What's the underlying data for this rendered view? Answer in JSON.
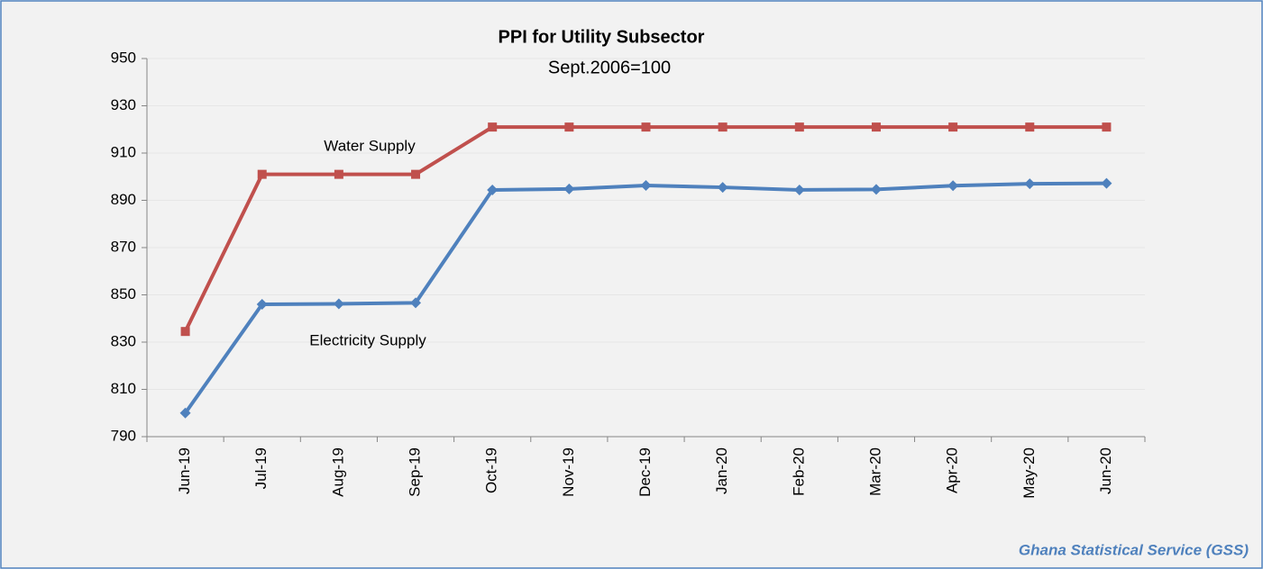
{
  "chart_data": {
    "type": "line",
    "title": "PPI  for Utility Subsector",
    "subtitle": "Sept.2006=100",
    "source": "Ghana Statistical Service (GSS)",
    "categories": [
      "Jun-19",
      "Jul-19",
      "Aug-19",
      "Sep-19",
      "Oct-19",
      "Nov-19",
      "Dec-19",
      "Jan-20",
      "Feb-20",
      "Mar-20",
      "Apr-20",
      "May-20",
      "Jun-20"
    ],
    "series": [
      {
        "name": "Water Supply",
        "color": "#c0504d",
        "marker": "square",
        "values": [
          834.5,
          901,
          901,
          901,
          921,
          921,
          921,
          921,
          921,
          921,
          921,
          921,
          921
        ]
      },
      {
        "name": "Electricity Supply",
        "color": "#4f81bd",
        "marker": "diamond",
        "values": [
          800,
          846,
          846.2,
          846.6,
          894.4,
          894.8,
          896.3,
          895.5,
          894.4,
          894.6,
          896.2,
          897,
          897.2
        ]
      }
    ],
    "ylim": [
      790,
      950
    ],
    "yticks": [
      790,
      810,
      830,
      850,
      870,
      890,
      910,
      930,
      950
    ],
    "grid": true
  }
}
